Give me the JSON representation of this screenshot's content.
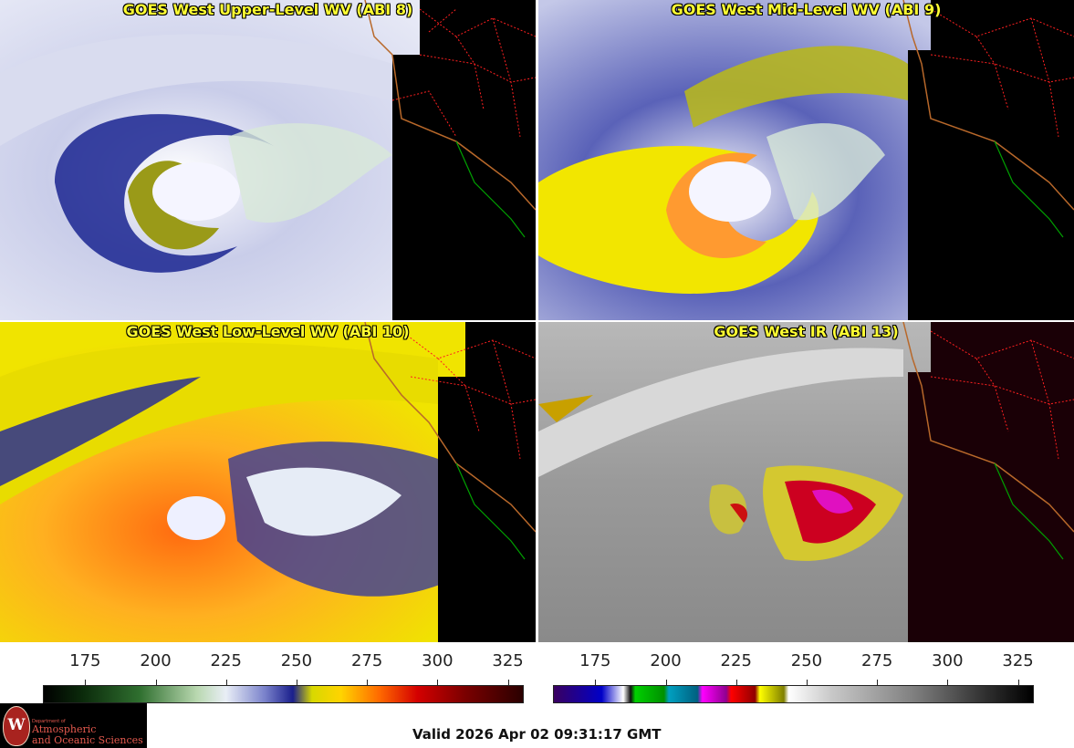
{
  "panels": [
    {
      "title": "GOES West Upper-Level WV (ABI 8)",
      "product": "upper-wv"
    },
    {
      "title": "GOES West Mid-Level WV (ABI 9)",
      "product": "mid-wv"
    },
    {
      "title": "GOES West Low-Level WV (ABI 10)",
      "product": "low-wv"
    },
    {
      "title": "GOES West IR (ABI 13)",
      "product": "ir"
    }
  ],
  "colorbars": {
    "wv": {
      "ticks": [
        "175",
        "200",
        "225",
        "250",
        "275",
        "300",
        "325"
      ],
      "min": 160,
      "max": 330
    },
    "ir": {
      "ticks": [
        "175",
        "200",
        "225",
        "250",
        "275",
        "300",
        "325"
      ],
      "min": 160,
      "max": 330
    }
  },
  "logo": {
    "dept": "Department of",
    "line1": "Atmospheric",
    "line2": "and Oceanic Sciences",
    "seal": "W"
  },
  "valid_time": "Valid 2026 Apr 02 09:31:17 GMT",
  "colors": {
    "title": "#ffff33",
    "border_state": "#ff2020",
    "coast": "#b8682a",
    "mexico": "#00a000"
  }
}
